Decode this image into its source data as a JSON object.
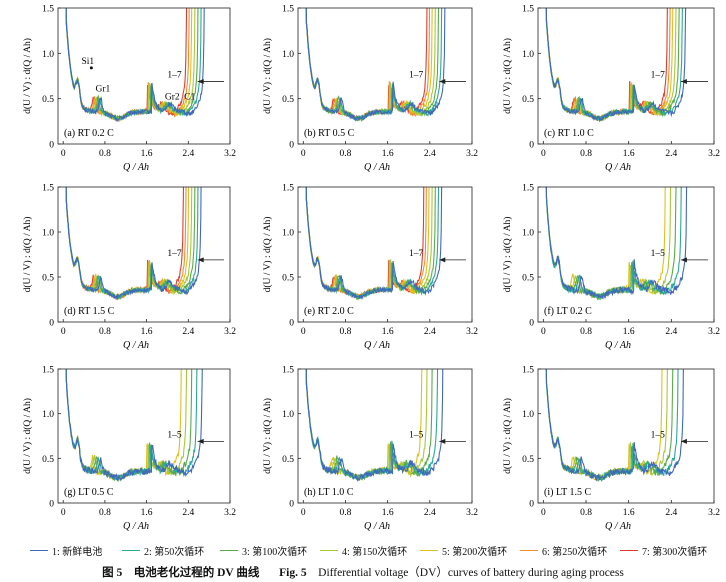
{
  "chart_data": {
    "type": "line",
    "title": "Differential voltage (DV) curves of battery during aging process",
    "xlabel": "Q / Ah",
    "ylabel": "d(U / V) : d(Q / Ah)",
    "xlim": [
      -0.1,
      3.2
    ],
    "ylim": [
      0,
      1.5
    ],
    "x_ticks": [
      "0",
      "0.8",
      "1.6",
      "2.4",
      "3.2"
    ],
    "y_ticks": [
      "0",
      "0.5",
      "1.0",
      "1.5"
    ],
    "series_legend": [
      {
        "id": 1,
        "label": "1: 新鲜电池",
        "color": "#4169b8"
      },
      {
        "id": 2,
        "label": "2: 第50次循环",
        "color": "#2aa89a"
      },
      {
        "id": 3,
        "label": "3: 第100次循环",
        "color": "#5aaa4a"
      },
      {
        "id": 4,
        "label": "4: 第150次循环",
        "color": "#a8c83a"
      },
      {
        "id": 5,
        "label": "5: 第200次循环",
        "color": "#e0c020"
      },
      {
        "id": 6,
        "label": "6: 第250次循环",
        "color": "#f08c30"
      },
      {
        "id": 7,
        "label": "7: 第300次循环",
        "color": "#e03c2c"
      }
    ],
    "panels": [
      {
        "label": "(a) RT 0.2 C",
        "n_series": 7,
        "annotation": "1–7",
        "end_capacity": [
          2.72,
          2.66,
          2.6,
          2.54,
          2.48,
          2.43,
          2.38
        ],
        "peak_labels": [
          "Si1",
          "Gr1",
          "Gr2",
          "C1"
        ]
      },
      {
        "label": "(b) RT 0.5 C",
        "n_series": 7,
        "annotation": "1–7",
        "end_capacity": [
          2.7,
          2.64,
          2.58,
          2.52,
          2.46,
          2.41,
          2.36
        ]
      },
      {
        "label": "(c) RT 1.0 C",
        "n_series": 7,
        "annotation": "1–7",
        "end_capacity": [
          2.68,
          2.62,
          2.56,
          2.5,
          2.44,
          2.39,
          2.34
        ]
      },
      {
        "label": "(d) RT 1.5 C",
        "n_series": 7,
        "annotation": "1–7",
        "end_capacity": [
          2.66,
          2.6,
          2.54,
          2.48,
          2.42,
          2.37,
          2.32
        ]
      },
      {
        "label": "(e) RT 2.0 C",
        "n_series": 7,
        "annotation": "1–7",
        "end_capacity": [
          2.64,
          2.58,
          2.52,
          2.46,
          2.4,
          2.35,
          2.3
        ]
      },
      {
        "label": "(f) LT 0.2 C",
        "n_series": 5,
        "annotation": "1–5",
        "end_capacity": [
          2.7,
          2.6,
          2.5,
          2.4,
          2.3
        ]
      },
      {
        "label": "(g) LT 0.5 C",
        "n_series": 5,
        "annotation": "1–5",
        "end_capacity": [
          2.68,
          2.58,
          2.48,
          2.38,
          2.28
        ]
      },
      {
        "label": "(h) LT 1.0 C",
        "n_series": 5,
        "annotation": "1–5",
        "end_capacity": [
          2.66,
          2.56,
          2.46,
          2.36,
          2.26
        ]
      },
      {
        "label": "(i) LT 1.5 C",
        "n_series": 5,
        "annotation": "1–5",
        "end_capacity": [
          2.64,
          2.54,
          2.44,
          2.34,
          2.24
        ]
      }
    ]
  },
  "caption": {
    "cn_label": "图 5",
    "cn_text": "电池老化过程的 DV 曲线",
    "en_label": "Fig. 5",
    "en_text": "Differential voltage（DV）curves of battery during aging process"
  }
}
